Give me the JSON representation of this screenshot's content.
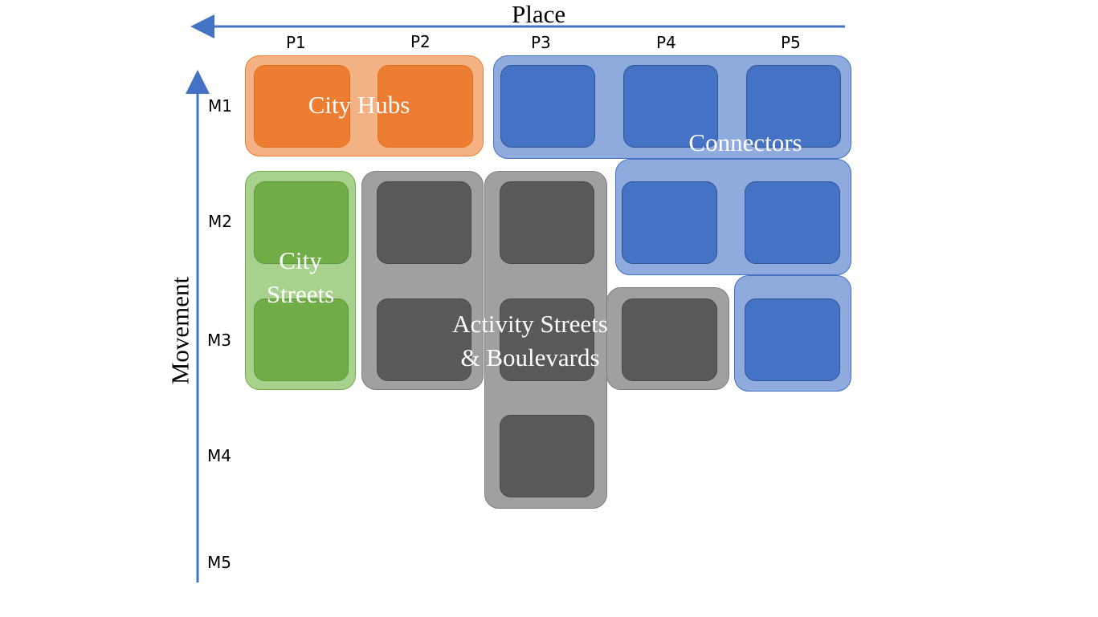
{
  "axes": {
    "x_title": "Place",
    "y_title": "Movement",
    "x_ticks": [
      "P1",
      "P2",
      "P3",
      "P4",
      "P5"
    ],
    "y_ticks": [
      "M1",
      "M2",
      "M3",
      "M4",
      "M5"
    ],
    "axis_color": "#4472c4"
  },
  "groups": {
    "city_hubs": {
      "label": "City Hubs",
      "color": "#ed7d31"
    },
    "connectors": {
      "label": "Connectors",
      "color": "#4472c4"
    },
    "city_streets": {
      "line1": "City",
      "line2": "Streets",
      "color": "#70ad47"
    },
    "activity_streets": {
      "line1": "Activity Streets",
      "line2": "& Boulevards",
      "color": "#595959"
    }
  }
}
